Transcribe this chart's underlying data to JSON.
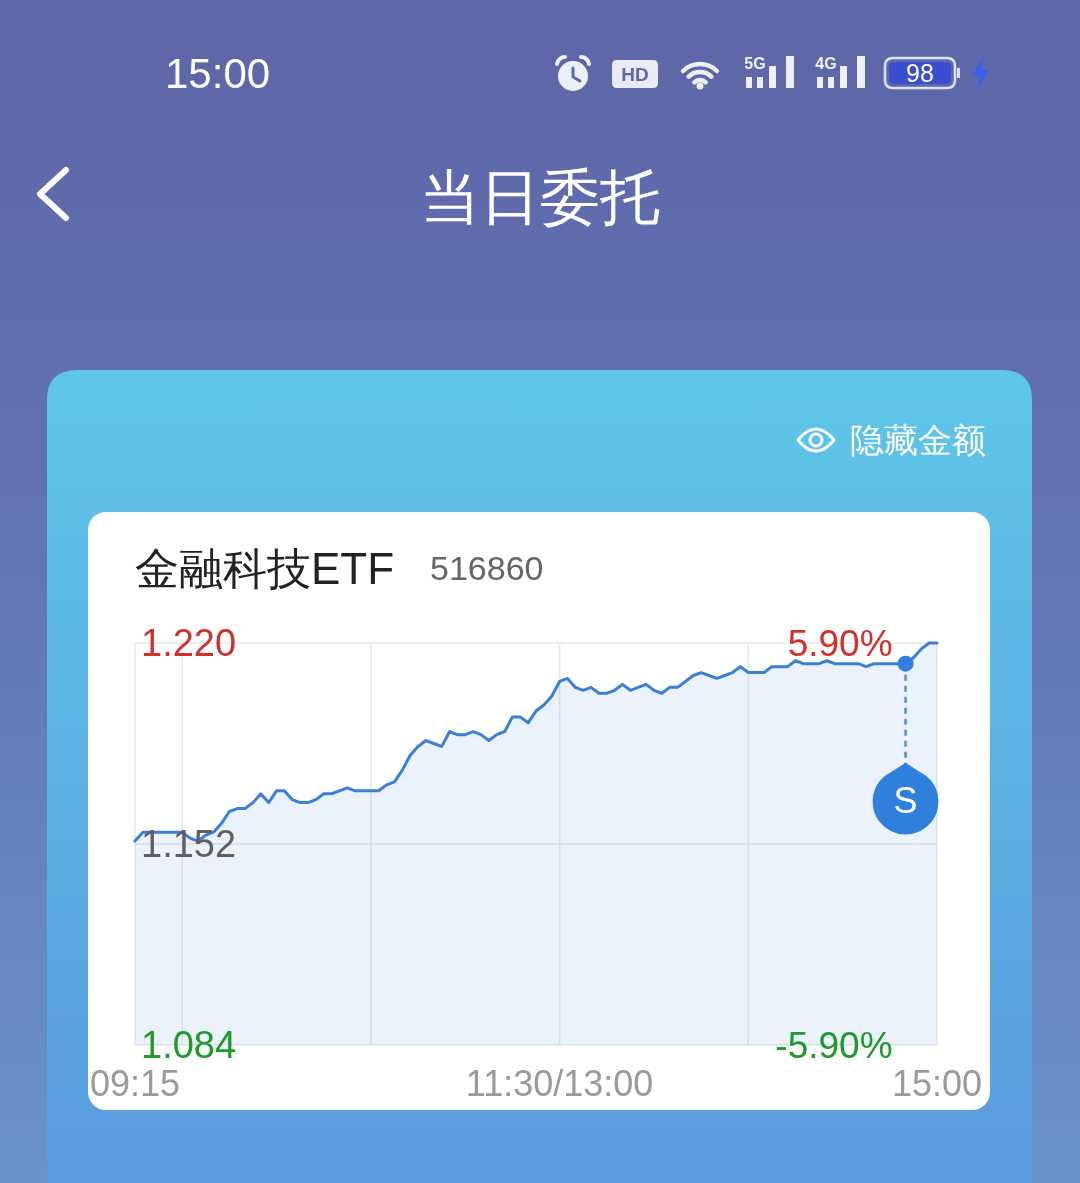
{
  "chart_data": [
    {
      "type": "other",
      "title": "当日委托",
      "annotations": [
        "15:00",
        "HD",
        "5G",
        "4G",
        "98",
        "隐藏金额"
      ]
    },
    {
      "type": "area",
      "title": "金融科技ETF",
      "subtitle": "516860",
      "categories": [
        "09:15",
        null,
        null,
        null,
        null,
        null,
        null,
        null,
        null,
        null,
        null,
        null,
        null,
        null,
        null,
        null,
        null,
        null,
        null,
        null,
        null,
        null,
        null,
        null,
        null,
        null,
        null,
        null,
        null,
        null,
        null,
        null,
        null,
        null,
        null,
        null,
        null,
        null,
        null,
        null,
        null,
        null,
        null,
        null,
        null,
        null,
        null,
        null,
        null,
        null,
        null,
        null,
        null,
        null,
        "11:30/13:00",
        null,
        null,
        null,
        null,
        null,
        null,
        null,
        null,
        null,
        null,
        null,
        null,
        null,
        null,
        null,
        null,
        null,
        null,
        null,
        null,
        null,
        null,
        null,
        null,
        null,
        null,
        null,
        null,
        null,
        null,
        null,
        null,
        null,
        null,
        null,
        null,
        null,
        null,
        null,
        null,
        null,
        null,
        null,
        null,
        null,
        null,
        null,
        "15:00"
      ],
      "series": [
        {
          "color": "#3a80d8",
          "values": [
            1.153,
            1.156,
            1.156,
            1.156,
            1.156,
            1.156,
            1.156,
            1.154,
            1.153,
            1.155,
            1.156,
            1.159,
            1.163,
            1.164,
            1.164,
            1.166,
            1.169,
            1.166,
            1.17,
            1.17,
            1.167,
            1.166,
            1.166,
            1.167,
            1.169,
            1.169,
            1.17,
            1.171,
            1.17,
            1.17,
            1.17,
            1.17,
            1.172,
            1.173,
            1.177,
            1.182,
            1.185,
            1.187,
            1.186,
            1.185,
            1.19,
            1.189,
            1.189,
            1.19,
            1.189,
            1.187,
            1.189,
            1.19,
            1.195,
            1.195,
            1.193,
            1.197,
            1.199,
            1.202,
            1.207,
            1.208,
            1.205,
            1.204,
            1.205,
            1.203,
            1.203,
            1.204,
            1.206,
            1.204,
            1.205,
            1.206,
            1.204,
            1.203,
            1.205,
            1.205,
            1.207,
            1.209,
            1.21,
            1.209,
            1.208,
            1.209,
            1.21,
            1.212,
            1.21,
            1.21,
            1.21,
            1.212,
            1.212,
            1.212,
            1.214,
            1.213,
            1.213,
            1.213,
            1.214,
            1.213,
            1.213,
            1.213,
            1.213,
            1.212,
            1.213,
            1.213,
            1.213,
            1.213,
            1.213,
            1.215,
            1.218,
            1.22,
            1.22
          ]
        },
        {
          "type": "scatter",
          "name": "S",
          "color": "#2f7fdc",
          "marker": "circle",
          "values": [
            null,
            null,
            null,
            null,
            null,
            null,
            null,
            null,
            null,
            null,
            null,
            null,
            null,
            null,
            null,
            null,
            null,
            null,
            null,
            null,
            null,
            null,
            null,
            null,
            null,
            null,
            null,
            null,
            null,
            null,
            null,
            null,
            null,
            null,
            null,
            null,
            null,
            null,
            null,
            null,
            null,
            null,
            null,
            null,
            null,
            null,
            null,
            null,
            null,
            null,
            null,
            null,
            null,
            null,
            null,
            null,
            null,
            null,
            null,
            null,
            null,
            null,
            null,
            null,
            null,
            null,
            null,
            null,
            null,
            null,
            null,
            null,
            null,
            null,
            null,
            null,
            null,
            null,
            null,
            null,
            null,
            null,
            null,
            null,
            null,
            null,
            null,
            null,
            null,
            null,
            null,
            null,
            null,
            null,
            null,
            null,
            null,
            null,
            1.213,
            null,
            null,
            null,
            null
          ]
        }
      ],
      "ylim": [
        1.084,
        1.22
      ],
      "yticks": [
        {
          "value": 1.22,
          "label": "1.220"
        },
        1.152,
        1.084
      ],
      "y2lim": [
        -5.9,
        5.9
      ],
      "y2ticks": [
        {
          "value": 5.9,
          "label": "5.90%"
        },
        {
          "value": -5.9,
          "label": "-5.90%"
        }
      ],
      "grid": true
    }
  ]
}
